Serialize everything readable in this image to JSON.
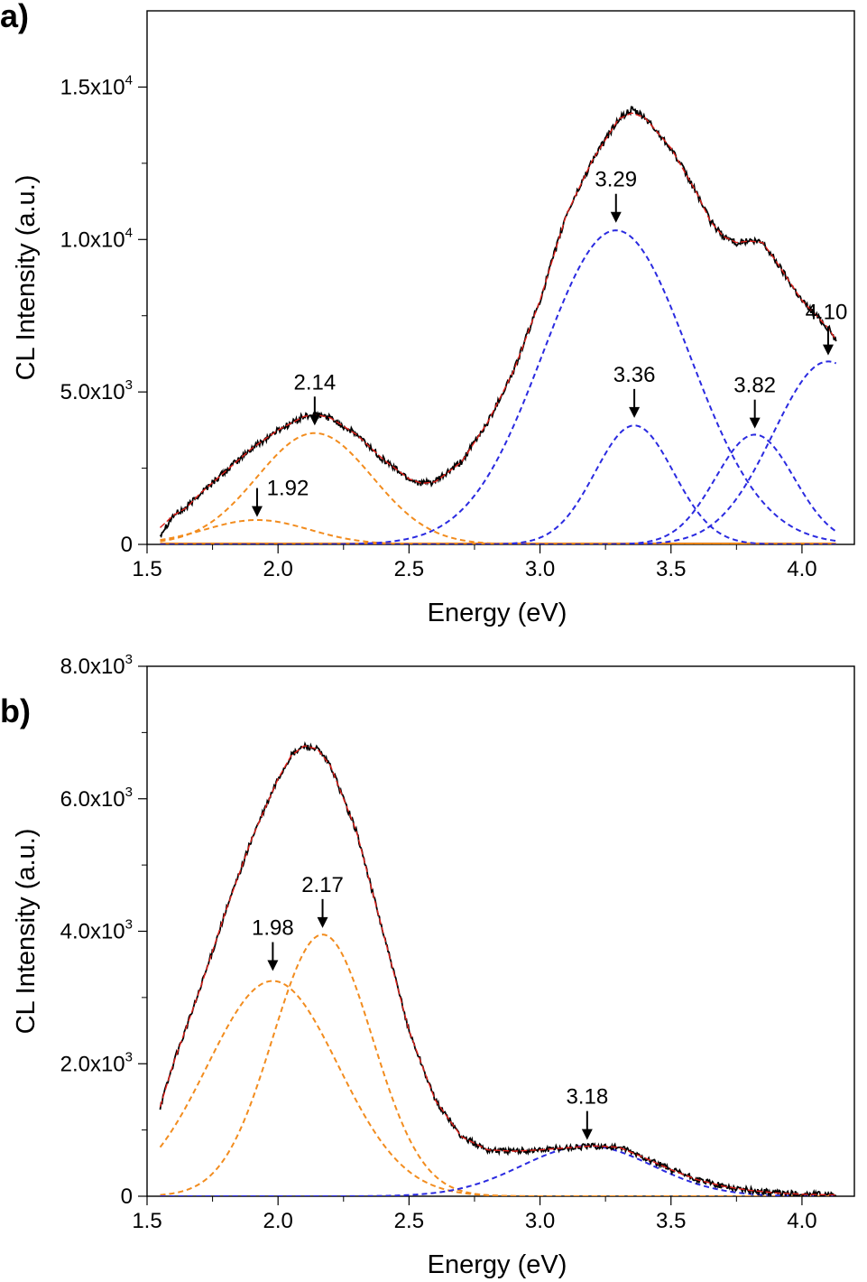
{
  "chart_data": [
    {
      "type": "line",
      "panel_label": "a)",
      "xlabel": "Energy (eV)",
      "ylabel": "CL Intensity (a.u.)",
      "xlim": [
        1.5,
        4.2
      ],
      "ylim": [
        0,
        17500
      ],
      "x_ticks": [
        {
          "value": 1.5,
          "label": "1.5"
        },
        {
          "value": 2.0,
          "label": "2.0"
        },
        {
          "value": 2.5,
          "label": "2.5"
        },
        {
          "value": 3.0,
          "label": "3.0"
        },
        {
          "value": 3.5,
          "label": "3.5"
        },
        {
          "value": 4.0,
          "label": "4.0"
        }
      ],
      "y_ticks": [
        {
          "value": 0,
          "mantissa": "0",
          "exponent": ""
        },
        {
          "value": 5000,
          "mantissa": "5.0x10",
          "exponent": "3"
        },
        {
          "value": 10000,
          "mantissa": "1.0x10",
          "exponent": "4"
        },
        {
          "value": 15000,
          "mantissa": "1.5x10",
          "exponent": "4"
        }
      ],
      "x_minor_step": 0.25,
      "y_minor_step": 2500,
      "baseline": {
        "from": 1.55,
        "to": 4.13,
        "color": "#e07a10"
      },
      "data_range": [
        1.55,
        4.13
      ],
      "series": [
        {
          "role": "measured",
          "color": "#000000",
          "dash": "none",
          "noise": 110,
          "points": [
            [
              1.55,
              330
            ],
            [
              1.6,
              950
            ],
            [
              1.65,
              1200
            ],
            [
              1.7,
              1650
            ],
            [
              1.8,
              2400
            ],
            [
              1.9,
              3150
            ],
            [
              2.0,
              3750
            ],
            [
              2.1,
              4200
            ],
            [
              2.15,
              4250
            ],
            [
              2.2,
              4150
            ],
            [
              2.3,
              3600
            ],
            [
              2.4,
              2800
            ],
            [
              2.5,
              2150
            ],
            [
              2.55,
              2000
            ],
            [
              2.6,
              2050
            ],
            [
              2.7,
              2700
            ],
            [
              2.8,
              4000
            ],
            [
              2.9,
              5700
            ],
            [
              3.0,
              8000
            ],
            [
              3.1,
              10800
            ],
            [
              3.2,
              12600
            ],
            [
              3.3,
              13950
            ],
            [
              3.35,
              14250
            ],
            [
              3.4,
              14000
            ],
            [
              3.5,
              13000
            ],
            [
              3.6,
              11500
            ],
            [
              3.65,
              10600
            ],
            [
              3.7,
              10100
            ],
            [
              3.75,
              9900
            ],
            [
              3.8,
              9950
            ],
            [
              3.85,
              9900
            ],
            [
              3.9,
              9300
            ],
            [
              4.0,
              8000
            ],
            [
              4.1,
              7100
            ],
            [
              4.13,
              6700
            ]
          ]
        },
        {
          "role": "fit",
          "color": "#e0201a",
          "dash": "none",
          "points": [
            [
              1.55,
              550
            ],
            [
              1.6,
              950
            ],
            [
              1.65,
              1200
            ],
            [
              1.7,
              1650
            ],
            [
              1.8,
              2400
            ],
            [
              1.9,
              3150
            ],
            [
              2.0,
              3750
            ],
            [
              2.1,
              4200
            ],
            [
              2.15,
              4250
            ],
            [
              2.2,
              4150
            ],
            [
              2.3,
              3600
            ],
            [
              2.4,
              2800
            ],
            [
              2.5,
              2150
            ],
            [
              2.55,
              2000
            ],
            [
              2.6,
              2050
            ],
            [
              2.7,
              2700
            ],
            [
              2.8,
              4000
            ],
            [
              2.9,
              5700
            ],
            [
              3.0,
              8000
            ],
            [
              3.1,
              10800
            ],
            [
              3.2,
              12600
            ],
            [
              3.3,
              13950
            ],
            [
              3.35,
              14150
            ],
            [
              3.4,
              14000
            ],
            [
              3.5,
              13000
            ],
            [
              3.6,
              11500
            ],
            [
              3.65,
              10600
            ],
            [
              3.7,
              10100
            ],
            [
              3.75,
              9900
            ],
            [
              3.8,
              9950
            ],
            [
              3.85,
              9900
            ],
            [
              3.9,
              9300
            ],
            [
              4.0,
              8000
            ],
            [
              4.1,
              7100
            ],
            [
              4.13,
              6700
            ]
          ]
        },
        {
          "role": "gaussian",
          "color": "#f28c1e",
          "dash": "6,4",
          "center": 1.92,
          "amplitude": 800,
          "sigma": 0.2
        },
        {
          "role": "gaussian",
          "color": "#f28c1e",
          "dash": "6,4",
          "center": 2.14,
          "amplitude": 3650,
          "sigma": 0.22
        },
        {
          "role": "gaussian",
          "color": "#2a2ae0",
          "dash": "6,4",
          "center": 3.29,
          "amplitude": 10300,
          "sigma": 0.28
        },
        {
          "role": "gaussian",
          "color": "#2a2ae0",
          "dash": "6,4",
          "center": 3.36,
          "amplitude": 3900,
          "sigma": 0.15
        },
        {
          "role": "gaussian",
          "color": "#2a2ae0",
          "dash": "6,4",
          "center": 3.82,
          "amplitude": 3600,
          "sigma": 0.15
        },
        {
          "role": "gaussian",
          "color": "#2a2ae0",
          "dash": "6,4",
          "center": 4.1,
          "amplitude": 6000,
          "sigma": 0.21
        }
      ],
      "annotations": [
        {
          "label": "2.14",
          "x": 2.14,
          "y_tip": 3900
        },
        {
          "label": "1.92",
          "x": 1.92,
          "y_tip": 900
        },
        {
          "label": "3.29",
          "x": 3.29,
          "y_tip": 10550
        },
        {
          "label": "3.36",
          "x": 3.36,
          "y_tip": 4150
        },
        {
          "label": "3.82",
          "x": 3.82,
          "y_tip": 3800
        },
        {
          "label": "4.10",
          "x": 4.1,
          "y_tip": 6200
        }
      ]
    },
    {
      "type": "line",
      "panel_label": "b)",
      "xlabel": "Energy (eV)",
      "ylabel": "CL Intensity (a.u.)",
      "xlim": [
        1.5,
        4.2
      ],
      "ylim": [
        0,
        8000
      ],
      "x_ticks": [
        {
          "value": 1.5,
          "label": "1.5"
        },
        {
          "value": 2.0,
          "label": "2.0"
        },
        {
          "value": 2.5,
          "label": "2.5"
        },
        {
          "value": 3.0,
          "label": "3.0"
        },
        {
          "value": 3.5,
          "label": "3.5"
        },
        {
          "value": 4.0,
          "label": "4.0"
        }
      ],
      "y_ticks": [
        {
          "value": 0,
          "mantissa": "0",
          "exponent": ""
        },
        {
          "value": 2000,
          "mantissa": "2.0x10",
          "exponent": "3"
        },
        {
          "value": 4000,
          "mantissa": "4.0x10",
          "exponent": "3"
        },
        {
          "value": 6000,
          "mantissa": "6.0x10",
          "exponent": "3"
        },
        {
          "value": 8000,
          "mantissa": "8.0x10",
          "exponent": "3"
        }
      ],
      "x_minor_step": 0.25,
      "y_minor_step": 1000,
      "baseline": null,
      "data_range": [
        1.55,
        4.13
      ],
      "series": [
        {
          "role": "measured",
          "color": "#000000",
          "dash": "none",
          "noise": 45,
          "points": [
            [
              1.55,
              1350
            ],
            [
              1.6,
              2000
            ],
            [
              1.7,
              3100
            ],
            [
              1.8,
              4300
            ],
            [
              1.9,
              5400
            ],
            [
              2.0,
              6300
            ],
            [
              2.05,
              6650
            ],
            [
              2.1,
              6800
            ],
            [
              2.15,
              6750
            ],
            [
              2.2,
              6500
            ],
            [
              2.3,
              5500
            ],
            [
              2.4,
              4000
            ],
            [
              2.5,
              2500
            ],
            [
              2.6,
              1450
            ],
            [
              2.7,
              900
            ],
            [
              2.8,
              700
            ],
            [
              2.9,
              680
            ],
            [
              3.0,
              700
            ],
            [
              3.1,
              730
            ],
            [
              3.2,
              760
            ],
            [
              3.3,
              740
            ],
            [
              3.4,
              580
            ],
            [
              3.5,
              400
            ],
            [
              3.6,
              250
            ],
            [
              3.7,
              150
            ],
            [
              3.8,
              90
            ],
            [
              3.9,
              50
            ],
            [
              4.0,
              30
            ],
            [
              4.13,
              20
            ]
          ]
        },
        {
          "role": "fit",
          "color": "#e0201a",
          "dash": "none",
          "points": [
            [
              1.55,
              1350
            ],
            [
              1.6,
              2000
            ],
            [
              1.7,
              3100
            ],
            [
              1.8,
              4300
            ],
            [
              1.9,
              5400
            ],
            [
              2.0,
              6300
            ],
            [
              2.05,
              6650
            ],
            [
              2.1,
              6800
            ],
            [
              2.15,
              6750
            ],
            [
              2.2,
              6500
            ],
            [
              2.3,
              5500
            ],
            [
              2.4,
              4000
            ],
            [
              2.5,
              2500
            ],
            [
              2.6,
              1450
            ],
            [
              2.7,
              900
            ],
            [
              2.8,
              700
            ],
            [
              2.9,
              680
            ],
            [
              3.0,
              700
            ],
            [
              3.1,
              730
            ],
            [
              3.2,
              760
            ],
            [
              3.3,
              740
            ],
            [
              3.4,
              580
            ],
            [
              3.5,
              400
            ],
            [
              3.6,
              250
            ],
            [
              3.7,
              150
            ],
            [
              3.8,
              90
            ],
            [
              3.9,
              50
            ],
            [
              4.0,
              30
            ],
            [
              4.13,
              20
            ]
          ]
        },
        {
          "role": "gaussian",
          "color": "#f28c1e",
          "dash": "6,4",
          "center": 1.98,
          "amplitude": 3250,
          "sigma": 0.25
        },
        {
          "role": "gaussian",
          "color": "#f28c1e",
          "dash": "6,4",
          "center": 2.17,
          "amplitude": 3950,
          "sigma": 0.19
        },
        {
          "role": "gaussian",
          "color": "#2a2ae0",
          "dash": "6,4",
          "center": 3.18,
          "amplitude": 760,
          "sigma": 0.25
        }
      ],
      "annotations": [
        {
          "label": "1.98",
          "x": 1.98,
          "y_tip": 3400
        },
        {
          "label": "2.17",
          "x": 2.17,
          "y_tip": 4050
        },
        {
          "label": "3.18",
          "x": 3.18,
          "y_tip": 850
        }
      ]
    }
  ]
}
